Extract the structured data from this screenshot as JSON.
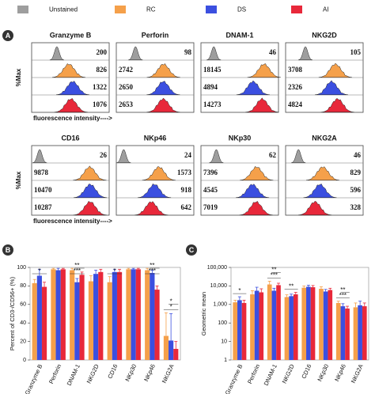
{
  "panel_labels": [
    "A",
    "B",
    "C"
  ],
  "legend": [
    {
      "name": "Unstained",
      "color": "#9e9e9e"
    },
    {
      "name": "RC",
      "color": "#f5a04a"
    },
    {
      "name": "DS",
      "color": "#3b4fe0"
    },
    {
      "name": "AI",
      "color": "#e8283a"
    }
  ],
  "flow_panels": {
    "y_label": "%Max",
    "x_label": "fluorescence intensity---->",
    "markers": [
      {
        "name": "Granzyme B",
        "mfi": [
          200,
          826,
          1322,
          1076
        ]
      },
      {
        "name": "Perforin",
        "mfi": [
          98,
          2742,
          2650,
          2653
        ]
      },
      {
        "name": "DNAM-1",
        "mfi": [
          46,
          18145,
          4894,
          14273
        ]
      },
      {
        "name": "NKG2D",
        "mfi": [
          105,
          3708,
          2326,
          4824
        ]
      },
      {
        "name": "CD16",
        "mfi": [
          26,
          9878,
          10470,
          10287
        ]
      },
      {
        "name": "NKp46",
        "mfi": [
          24,
          1573,
          918,
          642
        ]
      },
      {
        "name": "NKp30",
        "mfi": [
          62,
          7396,
          4545,
          7019
        ]
      },
      {
        "name": "NKG2A",
        "mfi": [
          46,
          829,
          596,
          328
        ]
      }
    ]
  },
  "chart_data": [
    {
      "type": "bar",
      "y_label": "Percent of CD3-/CD56+ (%)",
      "categories": [
        "Granzyme B",
        "Perforin",
        "DNAM-1",
        "NKG2D",
        "CD16",
        "NKp30",
        "NKp46",
        "NKG2A"
      ],
      "series": [
        {
          "values": [
            83,
            98,
            97,
            85,
            84,
            98,
            97,
            26
          ],
          "errors": [
            4,
            1,
            2,
            6,
            6,
            1,
            2,
            25
          ]
        },
        {
          "values": [
            91,
            97,
            84,
            93,
            95,
            98,
            94,
            21
          ],
          "errors": [
            7,
            2,
            4,
            4,
            3,
            1,
            3,
            29
          ]
        },
        {
          "values": [
            79,
            98,
            92,
            95,
            95,
            98,
            76,
            12
          ],
          "errors": [
            5,
            1,
            3,
            3,
            3,
            1,
            4,
            8
          ]
        }
      ],
      "ylim": [
        0,
        100
      ],
      "yticks": [
        0,
        20,
        40,
        60,
        80,
        100
      ],
      "log_scale": false,
      "annotations": [
        {
          "text": "*",
          "category": 0
        },
        {
          "text": "***",
          "category": 2
        },
        {
          "text": "**",
          "category": 2
        },
        {
          "text": "*",
          "category": 4
        },
        {
          "text": "***",
          "category": 6
        },
        {
          "text": "**",
          "category": 6
        },
        {
          "text": "*",
          "category": 7
        },
        {
          "text": "*",
          "category": 7
        }
      ]
    },
    {
      "type": "bar",
      "y_label": "Geometric mean",
      "categories": [
        "Granzyme B",
        "Perforin",
        "DNAM-1",
        "NKG2D",
        "CD16",
        "NKp30",
        "NKp46",
        "NKG2A"
      ],
      "series": [
        {
          "values": [
            1300,
            3500,
            12000,
            2500,
            8000,
            7000,
            1200,
            700
          ],
          "errors": [
            400,
            2000,
            6000,
            800,
            2000,
            2000,
            300,
            500
          ]
        },
        {
          "values": [
            1700,
            5500,
            5500,
            2800,
            9000,
            5000,
            800,
            900
          ],
          "errors": [
            900,
            3000,
            2000,
            800,
            2000,
            1500,
            300,
            600
          ]
        },
        {
          "values": [
            1200,
            4500,
            11000,
            3500,
            8500,
            6000,
            600,
            800
          ],
          "errors": [
            500,
            2500,
            3000,
            1000,
            2000,
            1500,
            200,
            400
          ]
        }
      ],
      "ylim": [
        1,
        100000
      ],
      "yticks": [
        1,
        10,
        100,
        {
          "value": 1000,
          "label": "1,000"
        },
        {
          "value": 10000,
          "label": "10,000"
        },
        {
          "value": 100000,
          "label": "100,000"
        }
      ],
      "log_scale": true,
      "annotations": [
        {
          "text": "*",
          "category": 0
        },
        {
          "text": "***",
          "category": 2
        },
        {
          "text": "**",
          "category": 2
        },
        {
          "text": "**",
          "category": 3
        },
        {
          "text": "***",
          "category": 6
        },
        {
          "text": "**",
          "category": 6
        }
      ]
    }
  ]
}
